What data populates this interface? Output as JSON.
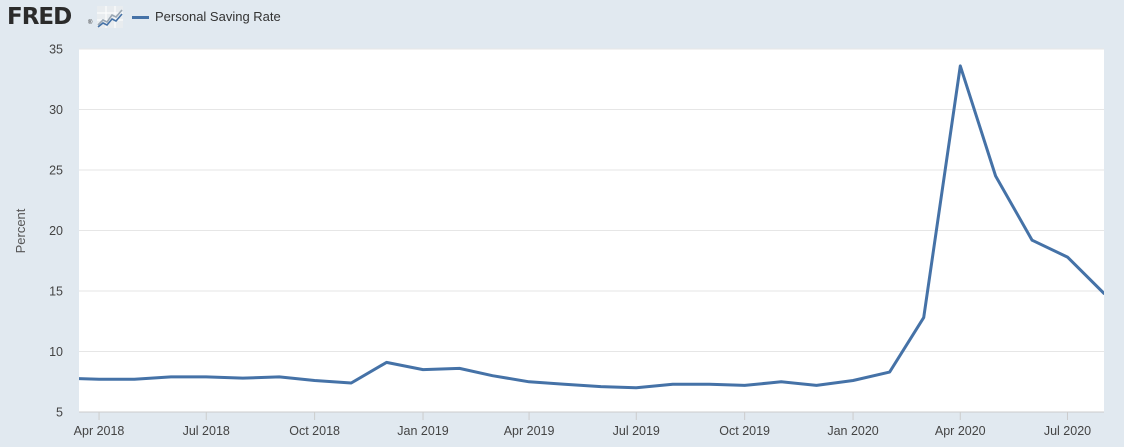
{
  "header": {
    "logo_text": "FRED",
    "logo_reg": "®",
    "legend_label": "Personal Saving Rate"
  },
  "colors": {
    "series": "#4572a7",
    "page_background": "#e1e9f0",
    "plot_background": "#ffffff",
    "grid": "#e6e6e6"
  },
  "chart_data": {
    "type": "line",
    "title": "",
    "xlabel": "",
    "ylabel": "Percent",
    "ylim": [
      5,
      35
    ],
    "y_ticks": [
      5,
      10,
      15,
      20,
      25,
      30,
      35
    ],
    "x_range": [
      "2018-03-15",
      "2020-08-01"
    ],
    "x_ticks": [
      {
        "date": "2018-04-01",
        "label": "Apr 2018"
      },
      {
        "date": "2018-07-01",
        "label": "Jul 2018"
      },
      {
        "date": "2018-10-01",
        "label": "Oct 2018"
      },
      {
        "date": "2019-01-01",
        "label": "Jan 2019"
      },
      {
        "date": "2019-04-01",
        "label": "Apr 2019"
      },
      {
        "date": "2019-07-01",
        "label": "Jul 2019"
      },
      {
        "date": "2019-10-01",
        "label": "Oct 2019"
      },
      {
        "date": "2020-01-01",
        "label": "Jan 2020"
      },
      {
        "date": "2020-04-01",
        "label": "Apr 2020"
      },
      {
        "date": "2020-07-01",
        "label": "Jul 2020"
      }
    ],
    "grid": true,
    "legend": "top-left",
    "series": [
      {
        "name": "Personal Saving Rate",
        "x": [
          "2018-03-01",
          "2018-04-01",
          "2018-05-01",
          "2018-06-01",
          "2018-07-01",
          "2018-08-01",
          "2018-09-01",
          "2018-10-01",
          "2018-11-01",
          "2018-12-01",
          "2019-01-01",
          "2019-02-01",
          "2019-03-01",
          "2019-04-01",
          "2019-05-01",
          "2019-06-01",
          "2019-07-01",
          "2019-08-01",
          "2019-09-01",
          "2019-10-01",
          "2019-11-01",
          "2019-12-01",
          "2020-01-01",
          "2020-02-01",
          "2020-03-01",
          "2020-04-01",
          "2020-05-01",
          "2020-06-01",
          "2020-07-01",
          "2020-08-01"
        ],
        "values": [
          7.8,
          7.7,
          7.7,
          7.9,
          7.9,
          7.8,
          7.9,
          7.6,
          7.4,
          9.1,
          8.5,
          8.6,
          8.0,
          7.5,
          7.3,
          7.1,
          7.0,
          7.3,
          7.3,
          7.2,
          7.5,
          7.2,
          7.6,
          8.3,
          12.8,
          33.6,
          24.5,
          19.2,
          17.8,
          14.8
        ]
      }
    ]
  }
}
